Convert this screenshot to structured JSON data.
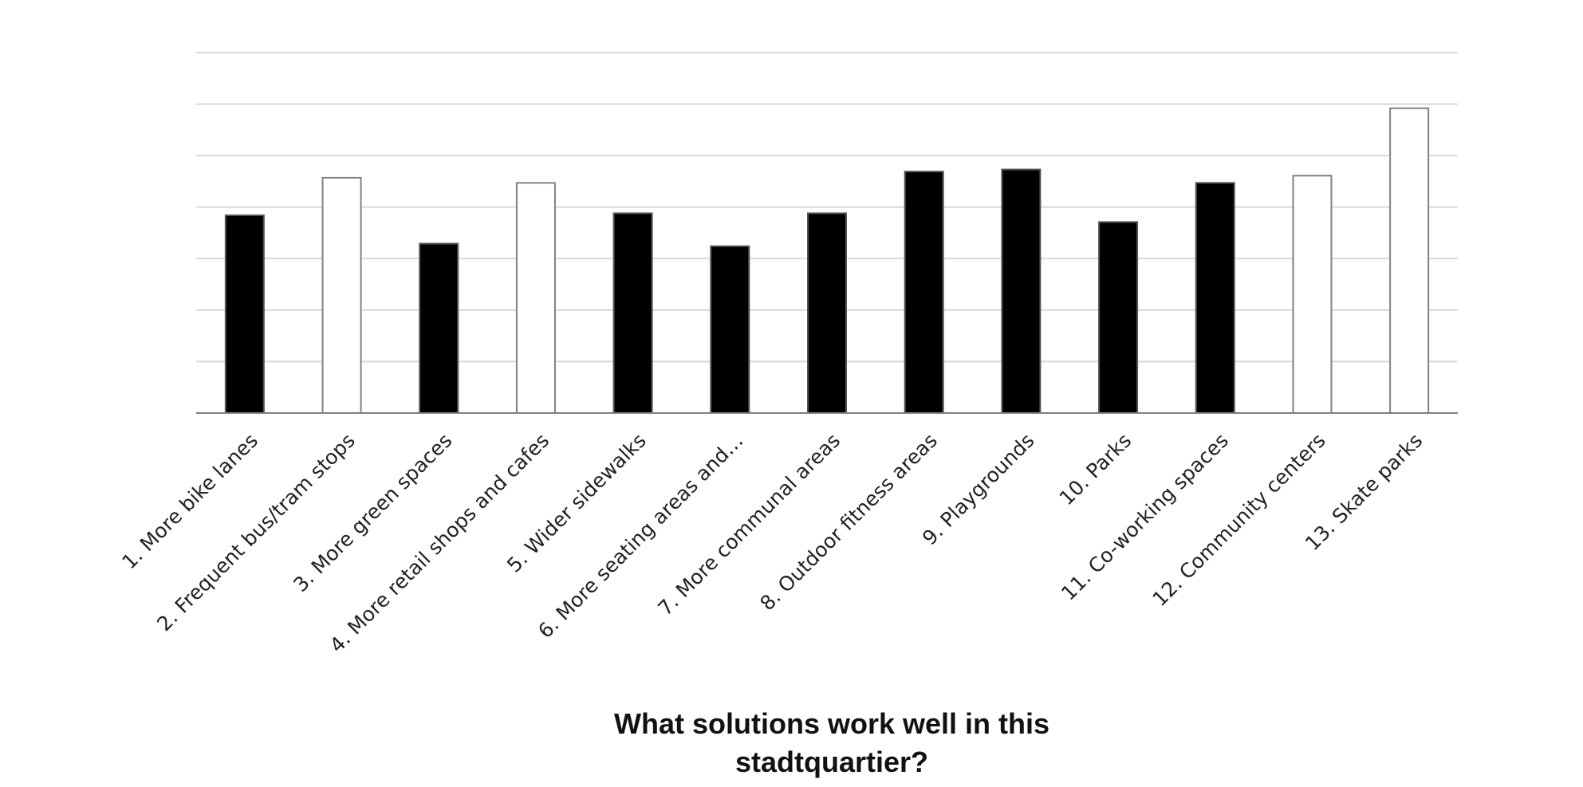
{
  "chart_data": {
    "type": "bar",
    "title": "What solutions work well in this stadtquartier?",
    "categories": [
      "1. More bike lanes",
      "2. Frequent bus/tram stops",
      "3. More green spaces",
      "4. More retail shops and cafes",
      "5. Wider sidewalks",
      "6. More seating areas and…",
      "7. More communal areas",
      "8. Outdoor fitness areas",
      "9. Playgrounds",
      "10. Parks",
      "11. Co-working spaces",
      "12. Community centers",
      "13. Skate parks"
    ],
    "values": [
      3.84,
      4.57,
      3.29,
      4.47,
      3.88,
      3.24,
      3.88,
      4.69,
      4.73,
      3.71,
      4.47,
      4.61,
      5.92
    ],
    "colors": [
      "#000000",
      "#ffffff",
      "#000000",
      "#ffffff",
      "#000000",
      "#000000",
      "#000000",
      "#000000",
      "#000000",
      "#000000",
      "#000000",
      "#ffffff",
      "#ffffff"
    ],
    "ylim": [
      0,
      7
    ],
    "gridlines": [
      1,
      2,
      3,
      4,
      5,
      6,
      7
    ],
    "grid": true
  }
}
